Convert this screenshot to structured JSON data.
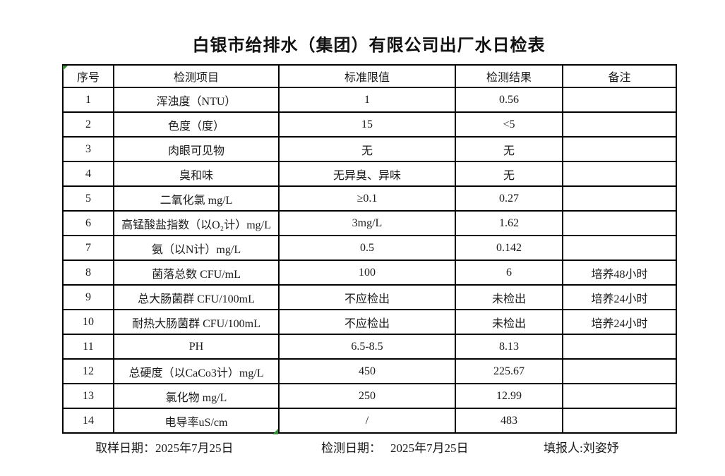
{
  "title": "白银市给排水（集团）有限公司出厂水日检表",
  "table": {
    "headers": [
      "序号",
      "检测项目",
      "标准限值",
      "检测结果",
      "备注"
    ],
    "rows": [
      [
        "1",
        "浑浊度（NTU）",
        "1",
        "0.56",
        ""
      ],
      [
        "2",
        "色度（度）",
        "15",
        "<5",
        ""
      ],
      [
        "3",
        "肉眼可见物",
        "无",
        "无",
        ""
      ],
      [
        "4",
        "臭和味",
        "无异臭、异味",
        "无",
        ""
      ],
      [
        "5",
        "二氧化氯 mg/L",
        "≥0.1",
        "0.27",
        ""
      ],
      [
        "6",
        "高锰酸盐指数（以O₂计）mg/L",
        "3mg/L",
        "1.62",
        ""
      ],
      [
        "7",
        "氨（以N计）mg/L",
        "0.5",
        "0.142",
        ""
      ],
      [
        "8",
        "菌落总数 CFU/mL",
        "100",
        "6",
        "培养48小时"
      ],
      [
        "9",
        "总大肠菌群 CFU/100mL",
        "不应检出",
        "未检出",
        "培养24小时"
      ],
      [
        "10",
        "耐热大肠菌群 CFU/100mL",
        "不应检出",
        "未检出",
        "培养24小时"
      ],
      [
        "11",
        "PH",
        "6.5-8.5",
        "8.13",
        ""
      ],
      [
        "12",
        "总硬度（以CaCo3计）mg/L",
        "450",
        "225.67",
        ""
      ],
      [
        "13",
        "氯化物 mg/L",
        "250",
        "12.99",
        ""
      ],
      [
        "14",
        "电导率uS/cm",
        "/",
        "483",
        ""
      ]
    ]
  },
  "footer": {
    "sampling_date_label": "取样日期：",
    "sampling_date": "2025年7月25日",
    "test_date_label": "检测日期：",
    "test_date": "2025年7月25日",
    "reporter_label": "填报人:",
    "reporter": "刘姿妤"
  },
  "colors": {
    "background": "#ffffff",
    "border": "#000000",
    "text": "#1a1a1a",
    "artifact_green": "#3a8e3a"
  }
}
